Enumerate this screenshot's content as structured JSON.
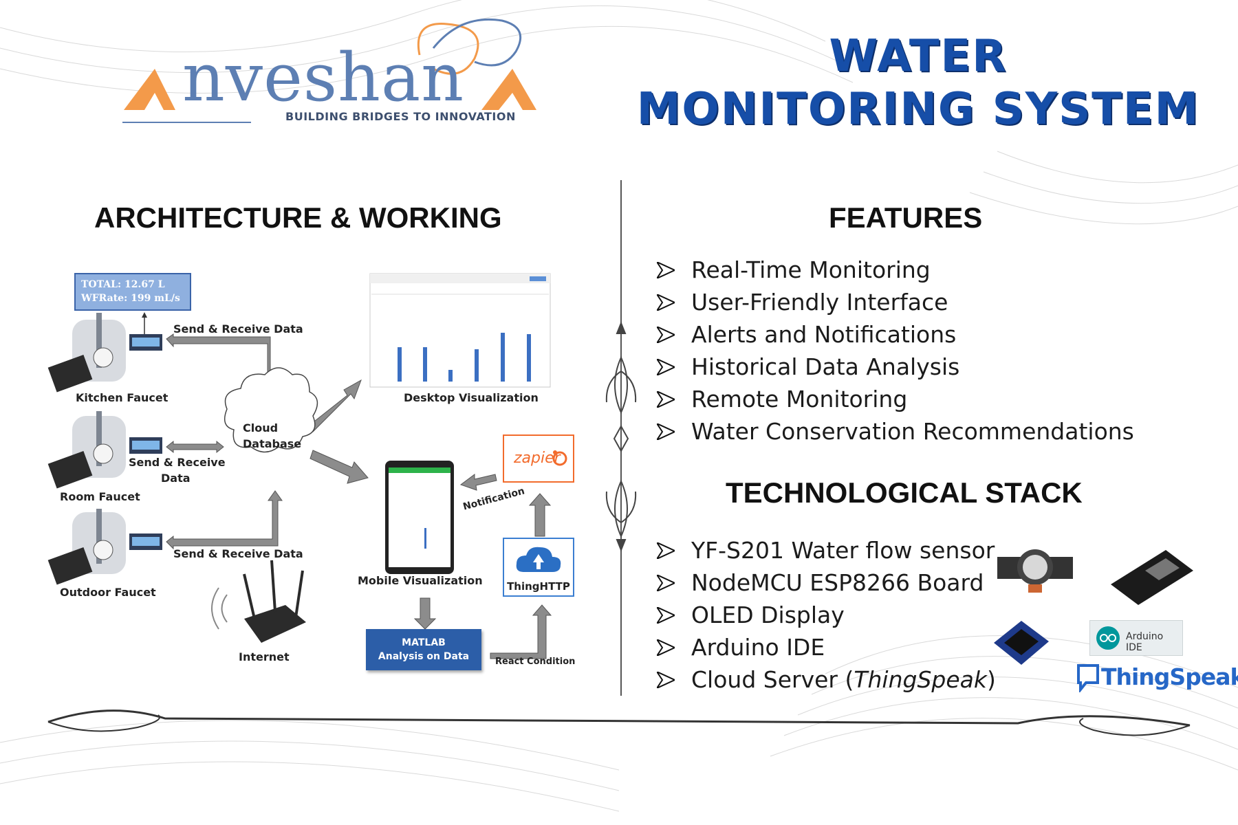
{
  "logo": {
    "brand": "nveshan",
    "tagline": "BUILDING BRIDGES TO INNOVATION"
  },
  "title": {
    "line1": "WATER",
    "line2": "MONITORING SYSTEM"
  },
  "architecture": {
    "heading": "ARCHITECTURE & WORKING",
    "lcd_line1": "TOTAL: 12.67 L",
    "lcd_line2": "WFRate: 199 mL/s",
    "send_receive_top": "Send & Receive Data",
    "send_receive_mid_1": "Send & Receive",
    "send_receive_mid_2": "Data",
    "send_receive_bottom": "Send & Receive Data",
    "kitchen": "Kitchen Faucet",
    "room": "Room Faucet",
    "outdoor": "Outdoor Faucet",
    "cloud_1": "Cloud",
    "cloud_2": "Database",
    "desktop": "Desktop Visualization",
    "mobile": "Mobile Visualization",
    "internet": "Internet",
    "matlab_1": "MATLAB",
    "matlab_2": "Analysis on Data",
    "react": "React Condition",
    "thinghttp": "ThingHTTP",
    "zapier": "zapier",
    "notification": "Notification"
  },
  "features": {
    "heading": "FEATURES",
    "items": [
      "Real-Time Monitoring",
      "User-Friendly Interface",
      "Alerts and Notifications",
      "Historical Data Analysis",
      "Remote Monitoring",
      "Water Conservation Recommendations"
    ]
  },
  "stack": {
    "heading": "TECHNOLOGICAL STACK",
    "items": [
      "YF-S201 Water flow sensor",
      "NodeMCU ESP8266 Board",
      "OLED Display",
      "Arduino IDE"
    ],
    "cloud_prefix": "Cloud Server (",
    "cloud_name": "ThingSpeak",
    "cloud_suffix": ")",
    "arduino_label": "Arduino IDE",
    "thingspeak_logo": "ThingSpeak"
  },
  "colors": {
    "title_blue": "#164ea8",
    "logo_orange": "#f39a4a",
    "logo_blue": "#5d7fb3",
    "zapier_orange": "#f26b2c"
  }
}
